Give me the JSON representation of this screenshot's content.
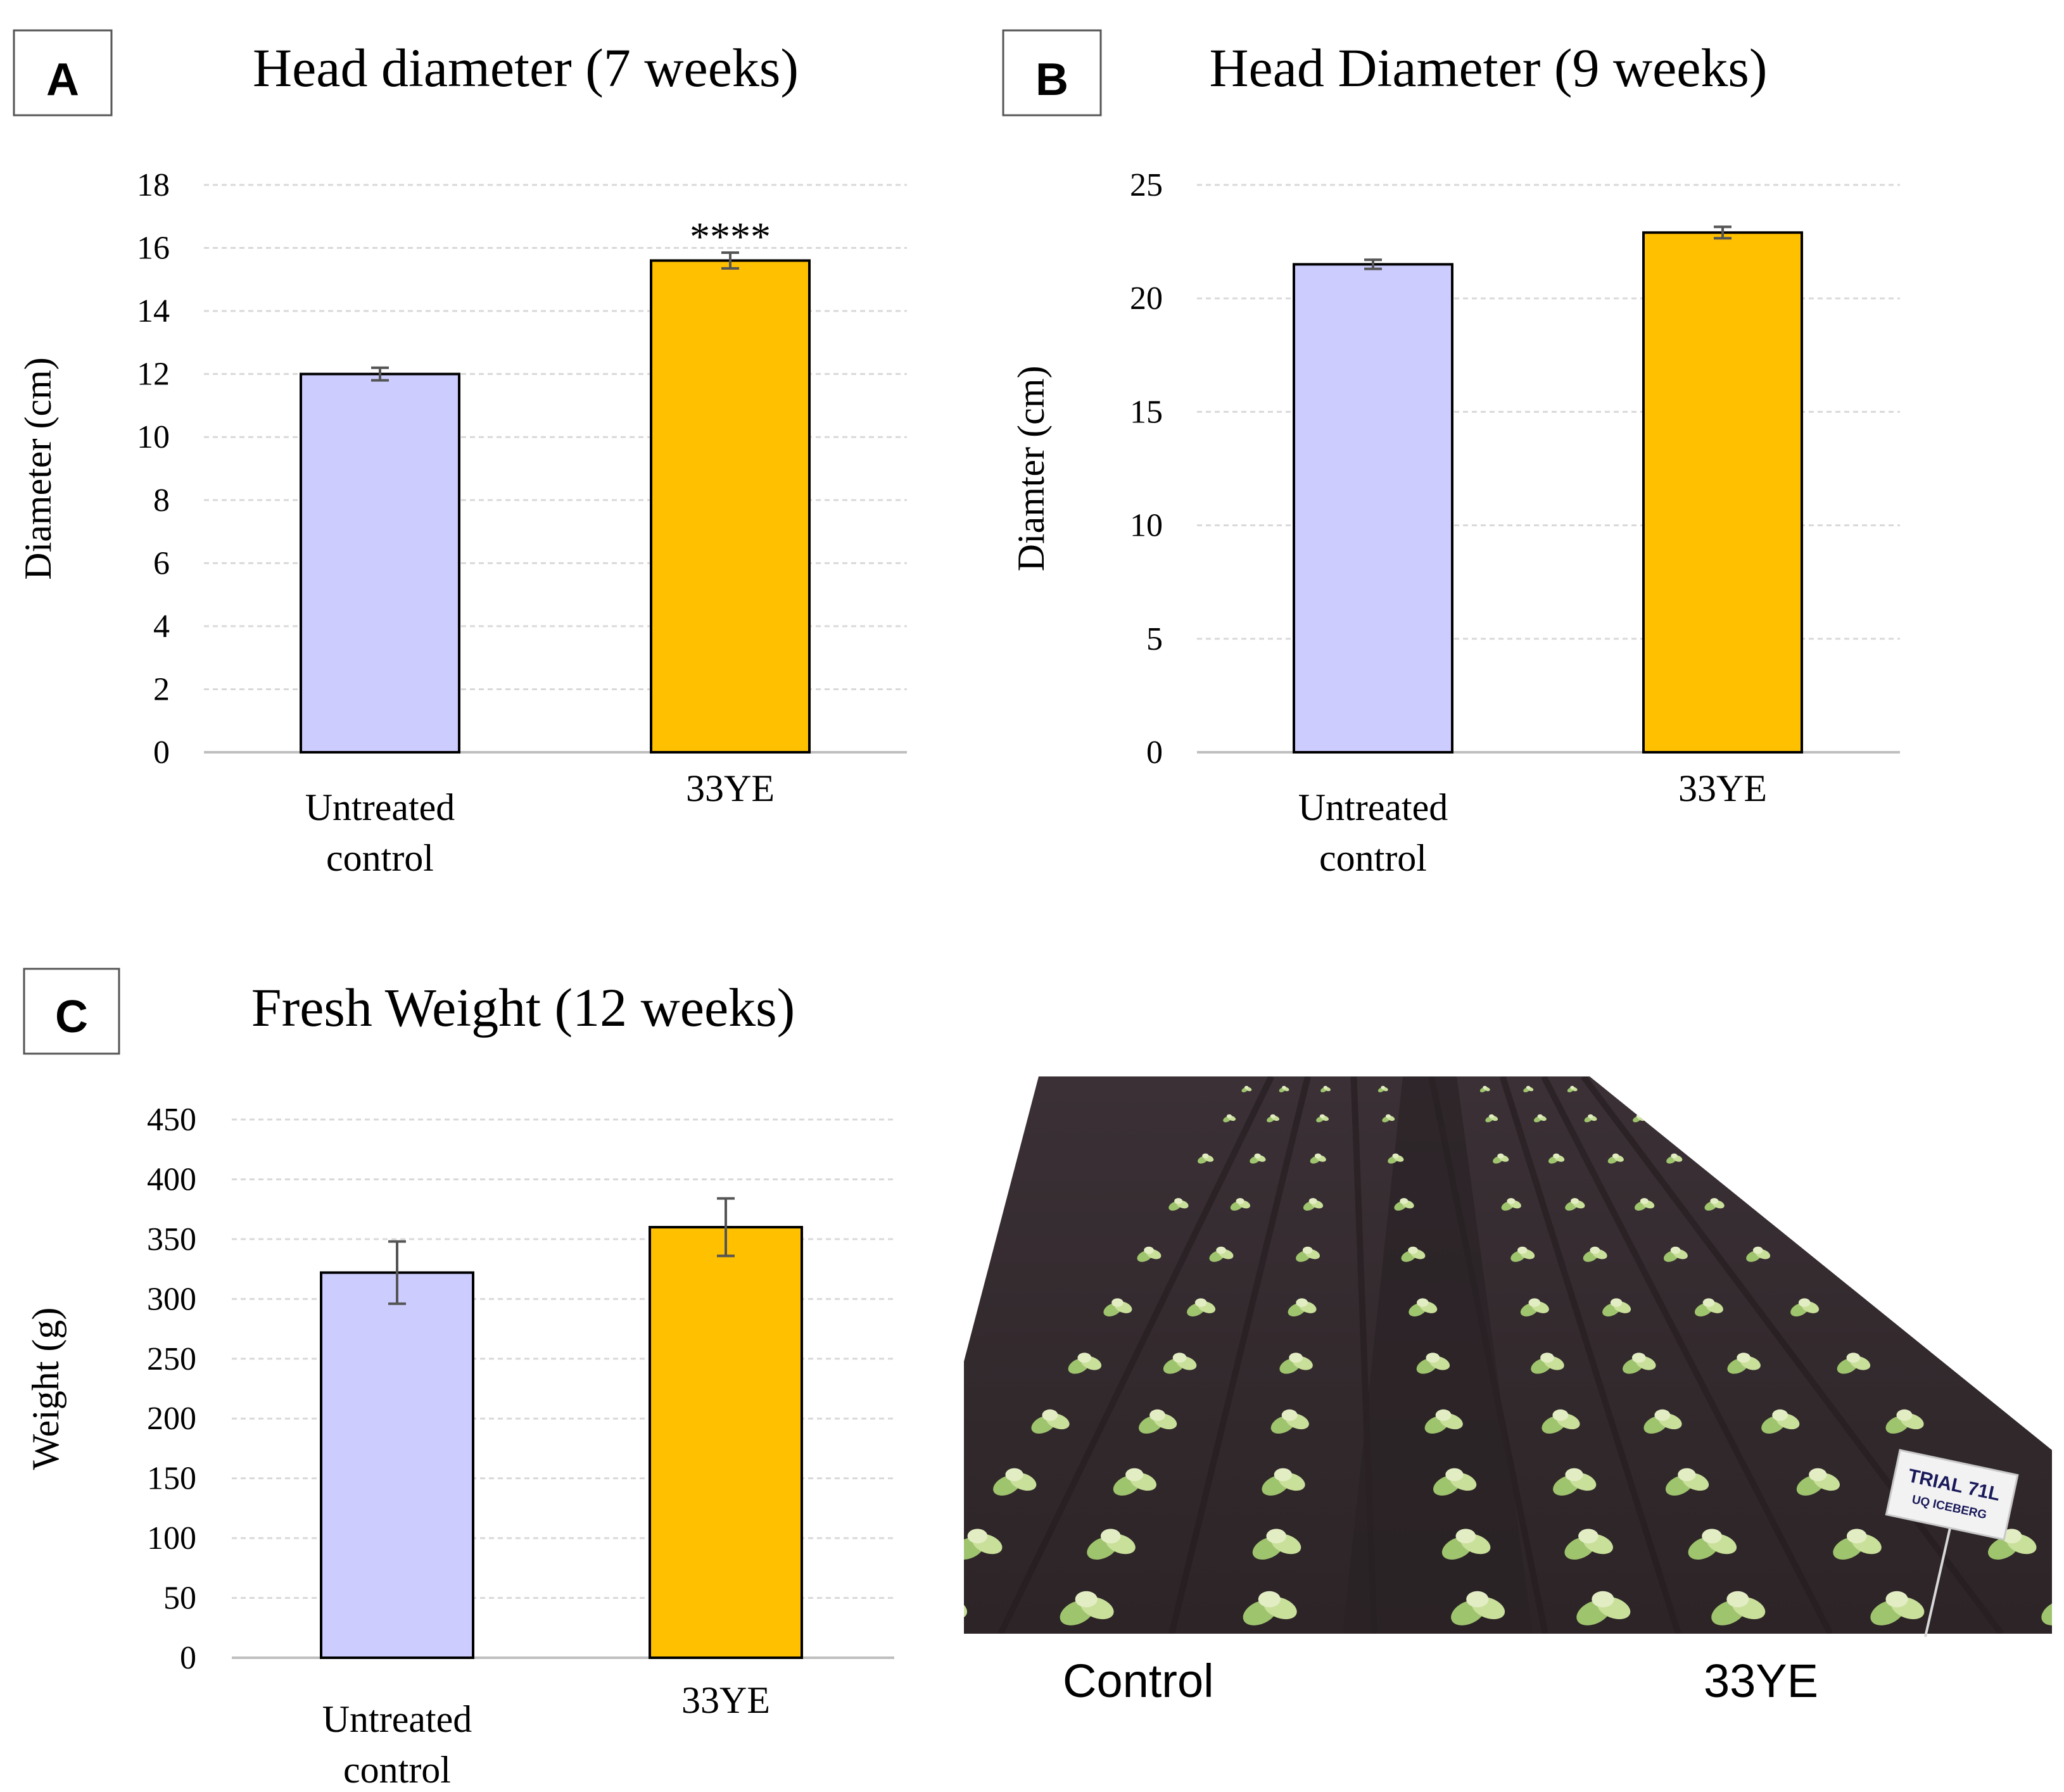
{
  "panels": {
    "A": {
      "letter": "A"
    },
    "B": {
      "letter": "B"
    },
    "C": {
      "letter": "C"
    }
  },
  "photo": {
    "label_control": "Control",
    "label_treated": "33YE",
    "sign_line1": "TRIAL 71L",
    "sign_line2": "UQ ICEBERG"
  },
  "chart_data": [
    {
      "panel": "A",
      "type": "bar",
      "title": "Head diameter (7 weeks)",
      "xlabel": "",
      "ylabel": "Diameter (cm)",
      "categories": [
        [
          "Untreated",
          "control"
        ],
        [
          "33YE"
        ]
      ],
      "values": [
        12.0,
        15.6
      ],
      "errors": [
        0.2,
        0.25
      ],
      "annotations": [
        "",
        "****"
      ],
      "colors": [
        "#ccccff",
        "#ffc000"
      ],
      "ylim": [
        0,
        18
      ],
      "yticks": [
        0,
        2,
        4,
        6,
        8,
        10,
        12,
        14,
        16,
        18
      ],
      "grid": true
    },
    {
      "panel": "B",
      "type": "bar",
      "title": "Head Diameter (9 weeks)",
      "xlabel": "",
      "ylabel": "Diamter (cm)",
      "categories": [
        [
          "Untreated",
          "control"
        ],
        [
          "33YE"
        ]
      ],
      "values": [
        21.5,
        22.9
      ],
      "errors": [
        0.2,
        0.25
      ],
      "annotations": [
        "",
        ""
      ],
      "colors": [
        "#ccccff",
        "#ffc000"
      ],
      "ylim": [
        0,
        25
      ],
      "yticks": [
        0,
        5,
        10,
        15,
        20,
        25
      ],
      "grid": true
    },
    {
      "panel": "C",
      "type": "bar",
      "title": "Fresh Weight (12 weeks)",
      "xlabel": "",
      "ylabel": "Weight (g)",
      "categories": [
        [
          "Untreated",
          "control"
        ],
        [
          "33YE"
        ]
      ],
      "values": [
        322,
        360
      ],
      "errors": [
        26,
        24
      ],
      "annotations": [
        "",
        ""
      ],
      "colors": [
        "#ccccff",
        "#ffc000"
      ],
      "ylim": [
        0,
        450
      ],
      "yticks": [
        0,
        50,
        100,
        150,
        200,
        250,
        300,
        350,
        400,
        450
      ],
      "grid": true
    }
  ]
}
